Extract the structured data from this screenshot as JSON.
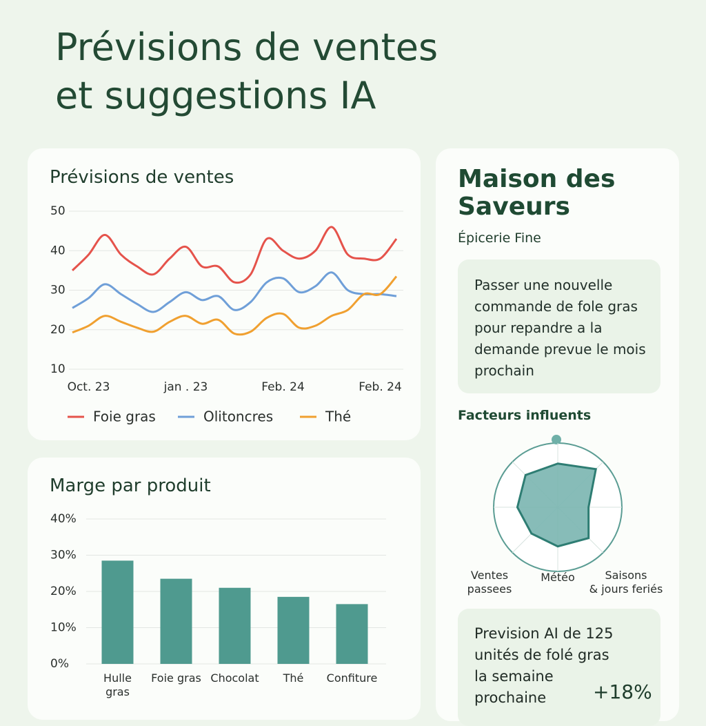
{
  "header": {
    "title": "Prévisions de ventes\net suggestions IA"
  },
  "chart_data": [
    {
      "type": "line",
      "title": "Prévisions de ventes",
      "categories": [
        null,
        "Oct. 23",
        null,
        null,
        null,
        null,
        null,
        "jan . 23",
        null,
        null,
        null,
        null,
        null,
        "Feb. 24",
        null,
        null,
        null,
        null,
        null,
        "Feb. 24",
        null
      ],
      "series": [
        {
          "name": "Foie gras",
          "color": "#e5534b",
          "values": [
            35,
            39,
            44,
            39,
            36,
            34,
            38,
            41,
            36,
            36,
            32,
            34,
            43,
            40,
            38,
            40,
            46,
            39,
            38,
            38,
            43
          ]
        },
        {
          "name": "Olitoncres",
          "color": "#6f9fd8",
          "values": [
            25.5,
            28,
            31.5,
            29,
            26.5,
            24.5,
            27,
            29.5,
            27.5,
            28.5,
            25,
            27,
            32,
            33,
            29.5,
            31,
            34.5,
            30,
            29,
            29,
            28.5
          ]
        },
        {
          "name": "Thé",
          "color": "#f0a030",
          "values": [
            19.3,
            21,
            23.5,
            22,
            20.5,
            19.5,
            22,
            23.5,
            21.5,
            22.5,
            19,
            19.5,
            23,
            24,
            20.5,
            21,
            23.5,
            25,
            29,
            29,
            33.5
          ]
        }
      ],
      "ylim": [
        10,
        50
      ],
      "yticks": [
        10,
        20,
        30,
        40,
        50
      ],
      "grid": true
    },
    {
      "type": "bar",
      "title": "Marge par produit",
      "categories": [
        "Hulle\ngras",
        "Foie gras",
        "Chocolat",
        "Thé",
        "Confiture"
      ],
      "values": [
        28.5,
        23.5,
        21,
        18.5,
        16.5
      ],
      "color": "#4f9a8f",
      "ylim": [
        0,
        40
      ],
      "yticks": [
        {
          "value": 0,
          "label": "0%"
        },
        {
          "value": 10,
          "label": "10%"
        },
        {
          "value": 20,
          "label": "20%"
        },
        {
          "value": 30,
          "label": "30%"
        },
        {
          "value": 40,
          "label": "40%"
        }
      ],
      "grid": true
    },
    {
      "type": "radar",
      "title": "Facteurs influents",
      "categories": [
        null,
        null,
        null,
        "Saisons\n& jours feriés",
        "Météo",
        "Ventes\npassees",
        null,
        null
      ],
      "values": [
        68,
        84,
        48,
        68,
        61,
        58,
        63,
        71
      ],
      "rlim": [
        0,
        100
      ],
      "color": "#7ab5b0"
    }
  ],
  "sidebar": {
    "title": "Maison des\nSaveurs",
    "subtitle": "Épicerie Fine",
    "suggestion": "Passer une nouvelle\ncommande de fole gras\npour repandre a la\ndemande prevue le mois\nprochain",
    "forecast": "Prevision AI de 125\nunités de folé gras\nla semaine\nprochaine",
    "change": "+18%"
  }
}
